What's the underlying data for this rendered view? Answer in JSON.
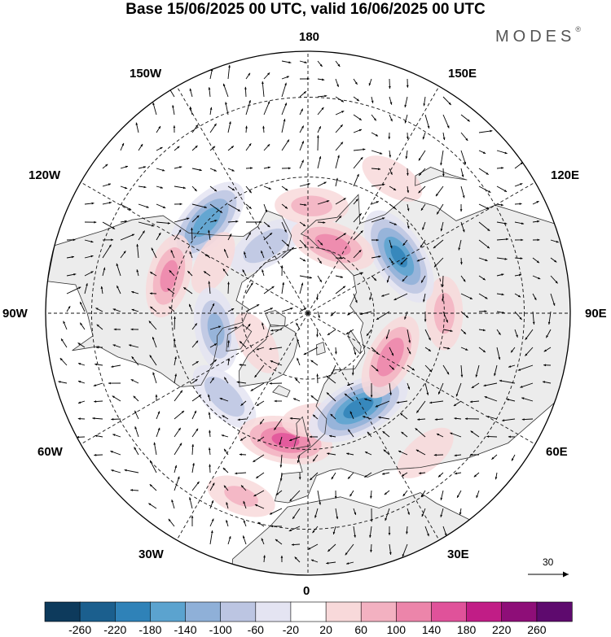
{
  "title": "Base 15/06/2025 00 UTC, valid 16/06/2025 00 UTC",
  "logo": "MODES",
  "logo_mark": "®",
  "longitude_labels": {
    "lon_180": "180",
    "lon_150e": "150E",
    "lon_120e": "120E",
    "lon_90e": "90E",
    "lon_60e": "60E",
    "lon_30e": "30E",
    "lon_0": "0",
    "lon_30w": "30W",
    "lon_60w": "60W",
    "lon_90w": "90W",
    "lon_120w": "120W",
    "lon_150w": "150W"
  },
  "vector_scale_label": "30",
  "colorbar": {
    "colors": [
      "#0d3a5c",
      "#1b5f8e",
      "#2f82b8",
      "#5ba3cf",
      "#8fb0d8",
      "#bcc5e2",
      "#e4e4f2",
      "#ffffff",
      "#f8d9da",
      "#f3b1c1",
      "#ec85aa",
      "#e0529a",
      "#c11d86",
      "#8e0e78",
      "#5e0a6e"
    ],
    "ticks": [
      "-260",
      "-220",
      "-180",
      "-140",
      "-100",
      "-60",
      "-20",
      "20",
      "60",
      "100",
      "140",
      "180",
      "220",
      "260"
    ]
  },
  "map_style": {
    "projection": "north polar stereographic",
    "land_color": "#ececec",
    "ocean_color": "#ffffff",
    "graticule": "dashed"
  },
  "anomalies": [
    {
      "lon": -132,
      "lat": 50,
      "value": -180
    },
    {
      "lon": -148,
      "lat": 66,
      "value": -100
    },
    {
      "lon": -105,
      "lat": 48,
      "value": 120
    },
    {
      "lon": -118,
      "lat": 58,
      "value": 60
    },
    {
      "lon": -80,
      "lat": 62,
      "value": -120
    },
    {
      "lon": -45,
      "lat": 55,
      "value": -100
    },
    {
      "lon": -10,
      "lat": 52,
      "value": 160
    },
    {
      "lon": 4,
      "lat": 58,
      "value": 60
    },
    {
      "lon": 28,
      "lat": 58,
      "value": -220
    },
    {
      "lon": 62,
      "lat": 62,
      "value": 140
    },
    {
      "lon": 90,
      "lat": 50,
      "value": 80
    },
    {
      "lon": 122,
      "lat": 58,
      "value": -200
    },
    {
      "lon": 160,
      "lat": 68,
      "value": 130
    },
    {
      "lon": 178,
      "lat": 58,
      "value": 80
    },
    {
      "lon": -20,
      "lat": 35,
      "value": 70
    },
    {
      "lon": 40,
      "lat": 38,
      "value": 60
    },
    {
      "lon": 148,
      "lat": 44,
      "value": 60
    },
    {
      "lon": -60,
      "lat": 72,
      "value": 60
    }
  ]
}
